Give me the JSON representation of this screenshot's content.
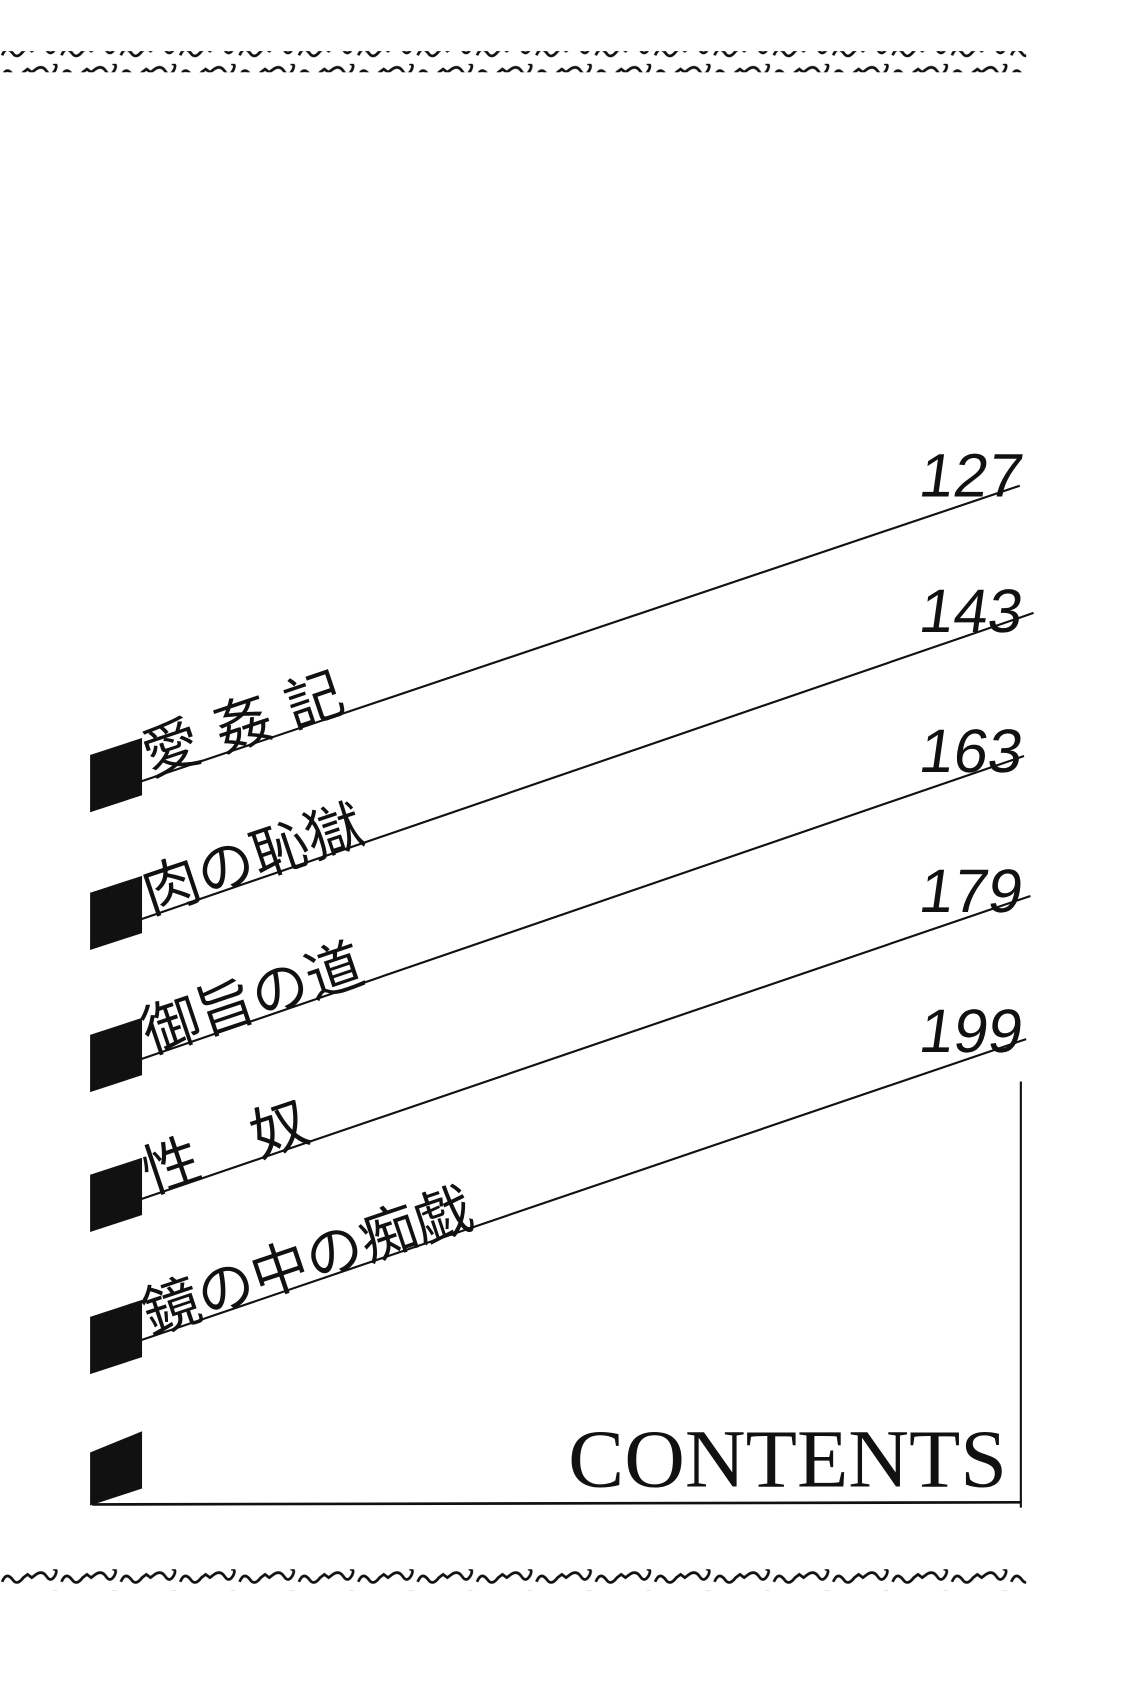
{
  "heading": "CONTENTS",
  "entries": [
    {
      "title": "愛 姦 記",
      "page": "127"
    },
    {
      "title": "肉の恥獄",
      "page": "143"
    },
    {
      "title": "御旨の道",
      "page": "163"
    },
    {
      "title": "性　奴",
      "page": "179"
    },
    {
      "title": "鏡の中の痴戯",
      "page": "199"
    }
  ],
  "colors": {
    "ink": "#111111",
    "paper": "#ffffff"
  }
}
